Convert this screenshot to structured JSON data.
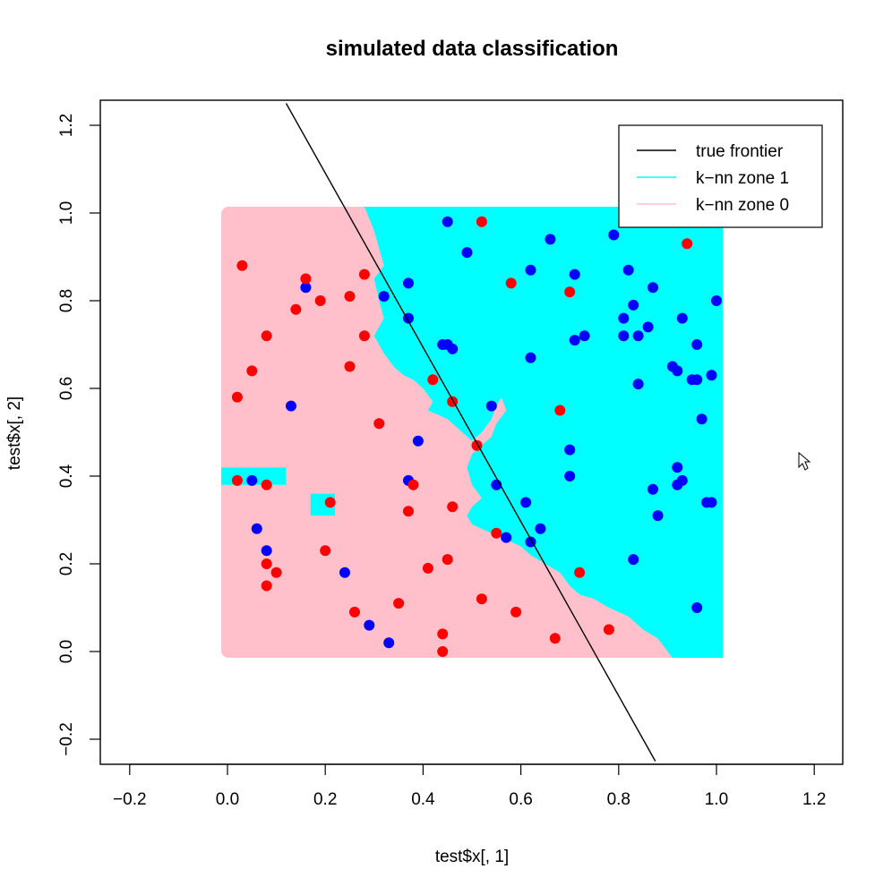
{
  "chart_data": {
    "type": "scatter",
    "title": "simulated data classification",
    "xlabel": "test$x[, 1]",
    "ylabel": "test$x[, 2]",
    "xlim": [
      -0.25,
      1.25
    ],
    "ylim": [
      -0.25,
      1.25
    ],
    "x_ticks": [
      "−0.2",
      "0.0",
      "0.2",
      "0.4",
      "0.6",
      "0.8",
      "1.0",
      "1.2"
    ],
    "y_ticks": [
      "−0.2",
      "0.0",
      "0.2",
      "0.4",
      "0.6",
      "0.8",
      "1.0",
      "1.2"
    ],
    "x_tick_values": [
      -0.2,
      0.0,
      0.2,
      0.4,
      0.6,
      0.8,
      1.0,
      1.2
    ],
    "y_tick_values": [
      -0.2,
      0.0,
      0.2,
      0.4,
      0.6,
      0.8,
      1.0,
      1.2
    ],
    "grid": false,
    "legend_position": "top-right",
    "colors": {
      "zone1": "#00ffff",
      "zone0": "#ffc0cb",
      "class1": "#0000ff",
      "class0": "#ff0000",
      "frontier": "#000000"
    },
    "legend": [
      {
        "label": "true frontier",
        "color": "#000000"
      },
      {
        "label": "k−nn zone 1",
        "color": "#00ffff"
      },
      {
        "label": "k−nn zone 0",
        "color": "#ffc0cb"
      }
    ],
    "frontier": {
      "x": [
        0.12,
        0.875
      ],
      "y": [
        1.25,
        -0.25
      ]
    },
    "zone1_boundary": {
      "x": [
        0.243,
        0.28,
        0.3,
        0.31,
        0.32,
        0.3,
        0.31,
        0.32,
        0.3,
        0.32,
        0.34,
        0.36,
        0.38,
        0.4,
        0.42,
        0.41,
        0.45,
        0.48,
        0.5,
        0.52,
        0.54,
        0.55,
        0.56,
        0.57,
        0.55,
        0.54,
        0.52,
        0.5,
        0.49,
        0.5,
        0.52,
        0.5,
        0.49,
        0.5,
        0.54,
        0.56,
        0.58,
        0.6,
        0.62,
        0.65,
        0.68,
        0.7,
        0.72,
        0.75,
        0.78,
        0.82,
        0.85,
        0.88,
        0.91,
        0.93,
        1.0,
        1.0
      ],
      "y": [
        1.0,
        1.0,
        0.96,
        0.92,
        0.88,
        0.85,
        0.8,
        0.76,
        0.72,
        0.68,
        0.65,
        0.63,
        0.62,
        0.6,
        0.57,
        0.55,
        0.53,
        0.5,
        0.48,
        0.5,
        0.53,
        0.56,
        0.58,
        0.55,
        0.52,
        0.49,
        0.47,
        0.45,
        0.42,
        0.38,
        0.35,
        0.33,
        0.31,
        0.29,
        0.27,
        0.26,
        0.25,
        0.24,
        0.22,
        0.2,
        0.18,
        0.15,
        0.13,
        0.12,
        0.1,
        0.08,
        0.05,
        0.03,
        0.0,
        0.0,
        0.0,
        1.0
      ]
    },
    "zone1_islands": [
      {
        "x": [
          0.0,
          0.12,
          0.12,
          0.0
        ],
        "y": [
          0.42,
          0.42,
          0.38,
          0.38
        ]
      },
      {
        "x": [
          0.17,
          0.22,
          0.22,
          0.17
        ],
        "y": [
          0.36,
          0.36,
          0.31,
          0.31
        ]
      }
    ],
    "series": [
      {
        "name": "1",
        "x": [
          0.16,
          0.05,
          0.08,
          0.06,
          0.13,
          0.24,
          0.29,
          0.33,
          0.37,
          0.39,
          0.37,
          0.32,
          0.37,
          0.45,
          0.44,
          0.46,
          0.49,
          0.45,
          0.55,
          0.54,
          0.57,
          0.61,
          0.62,
          0.62,
          0.64,
          0.66,
          0.7,
          0.71,
          0.71,
          0.73,
          0.79,
          0.81,
          0.81,
          0.82,
          0.83,
          0.84,
          0.86,
          0.87,
          0.88,
          0.84,
          0.92,
          0.91,
          0.93,
          0.95,
          0.96,
          0.96,
          0.97,
          0.98,
          1.0,
          0.99,
          0.92,
          0.93,
          0.92,
          0.99,
          0.96,
          0.87,
          0.83,
          0.62,
          0.7
        ],
        "y": [
          0.83,
          0.39,
          0.23,
          0.28,
          0.56,
          0.18,
          0.06,
          0.02,
          0.84,
          0.48,
          0.39,
          0.81,
          0.76,
          0.98,
          0.7,
          0.69,
          0.91,
          0.7,
          0.38,
          0.56,
          0.26,
          0.34,
          0.87,
          0.67,
          0.28,
          0.94,
          0.4,
          0.71,
          0.86,
          0.72,
          0.95,
          0.72,
          0.76,
          0.87,
          0.79,
          0.72,
          0.74,
          0.83,
          0.31,
          0.61,
          0.64,
          0.65,
          0.76,
          0.62,
          0.7,
          0.62,
          0.53,
          0.34,
          0.8,
          0.63,
          0.42,
          0.39,
          0.38,
          0.34,
          0.1,
          0.37,
          0.21,
          0.25,
          0.46
        ]
      },
      {
        "name": "0",
        "x": [
          0.03,
          0.02,
          0.02,
          0.05,
          0.08,
          0.08,
          0.08,
          0.08,
          0.1,
          0.14,
          0.16,
          0.19,
          0.2,
          0.21,
          0.25,
          0.25,
          0.26,
          0.28,
          0.28,
          0.31,
          0.35,
          0.37,
          0.38,
          0.41,
          0.42,
          0.44,
          0.45,
          0.46,
          0.46,
          0.52,
          0.51,
          0.52,
          0.55,
          0.58,
          0.59,
          0.67,
          0.68,
          0.7,
          0.72,
          0.78,
          0.94,
          0.44
        ],
        "y": [
          0.88,
          0.58,
          0.39,
          0.64,
          0.72,
          0.38,
          0.2,
          0.15,
          0.18,
          0.78,
          0.85,
          0.8,
          0.23,
          0.34,
          0.81,
          0.65,
          0.09,
          0.86,
          0.72,
          0.52,
          0.11,
          0.32,
          0.38,
          0.19,
          0.62,
          0.04,
          0.21,
          0.33,
          0.57,
          0.98,
          0.47,
          0.12,
          0.27,
          0.84,
          0.09,
          0.03,
          0.55,
          0.82,
          0.18,
          0.05,
          0.93,
          0.0
        ]
      }
    ]
  }
}
